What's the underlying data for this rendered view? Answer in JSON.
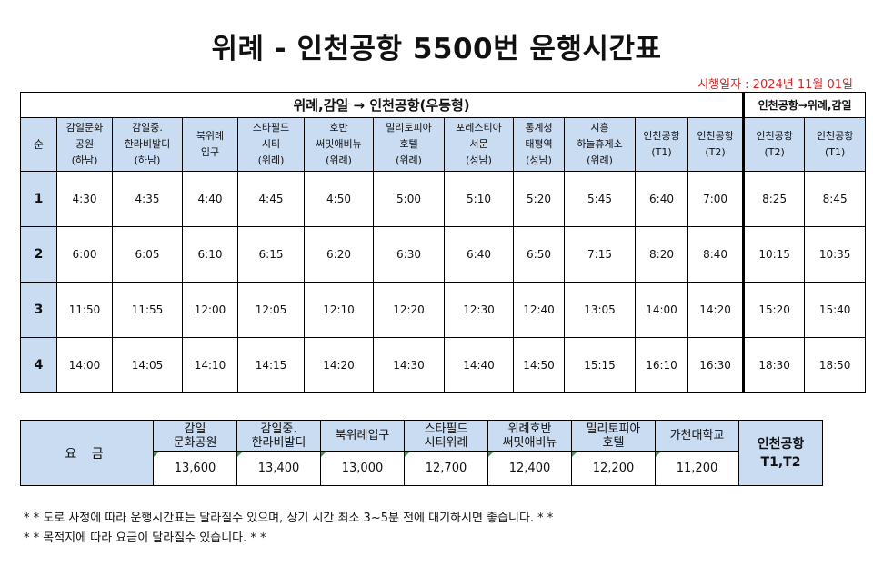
{
  "title": "위례 - 인천공항 5500번 운행시간표",
  "effective_date": "시행일자 : 2024년 11월 01일",
  "schedule": {
    "outbound_label": "위례,감일 → 인천공항(우등형)",
    "inbound_label": "인천공항→위례,감일",
    "seq_label": "순",
    "stops": [
      [
        "감일문화",
        "공원",
        "(하남)"
      ],
      [
        "감일중.",
        "한라비발디",
        "(하남)"
      ],
      [
        "북위례",
        "입구"
      ],
      [
        "스타필드",
        "시티",
        "(위례)"
      ],
      [
        "호반",
        "써밋애비뉴",
        "(위례)"
      ],
      [
        "밀리토피아",
        "호텔",
        "(위례)"
      ],
      [
        "포레스티아",
        "서문",
        "(성남)"
      ],
      [
        "통계청",
        "태평역",
        "(성남)"
      ],
      [
        "시흥",
        "하늘휴게소",
        "(위례)"
      ],
      [
        "인천공항",
        "(T1)"
      ],
      [
        "인천공항",
        "(T2)"
      ],
      [
        "인천공항",
        "(T2)"
      ],
      [
        "인천공항",
        "(T1)"
      ]
    ],
    "rows": [
      {
        "num": "1",
        "times": [
          "4:30",
          "4:35",
          "4:40",
          "4:45",
          "4:50",
          "5:00",
          "5:10",
          "5:20",
          "5:45",
          "6:40",
          "7:00",
          "8:25",
          "8:45"
        ]
      },
      {
        "num": "2",
        "times": [
          "6:00",
          "6:05",
          "6:10",
          "6:15",
          "6:20",
          "6:30",
          "6:40",
          "6:50",
          "7:15",
          "8:20",
          "8:40",
          "10:15",
          "10:35"
        ]
      },
      {
        "num": "3",
        "times": [
          "11:50",
          "11:55",
          "12:00",
          "12:05",
          "12:10",
          "12:20",
          "12:30",
          "12:40",
          "13:05",
          "14:00",
          "14:20",
          "15:20",
          "15:40"
        ]
      },
      {
        "num": "4",
        "times": [
          "14:00",
          "14:05",
          "14:10",
          "14:15",
          "14:20",
          "14:30",
          "14:40",
          "14:50",
          "15:15",
          "16:10",
          "16:30",
          "18:30",
          "18:50"
        ]
      }
    ]
  },
  "fares": {
    "label": "요 금",
    "stops": [
      {
        "name": [
          "감일",
          "문화공원"
        ],
        "price": "13,600"
      },
      {
        "name": [
          "감일중.",
          "한라비발디"
        ],
        "price": "13,400"
      },
      {
        "name": [
          "북위례입구"
        ],
        "price": "13,000"
      },
      {
        "name": [
          "스타필드",
          "시티위례"
        ],
        "price": "12,700"
      },
      {
        "name": [
          "위례호반",
          "써밋애비뉴"
        ],
        "price": "12,400"
      },
      {
        "name": [
          "밀리토피아",
          "호텔"
        ],
        "price": "12,200"
      },
      {
        "name": [
          "가천대학교"
        ],
        "price": "11,200"
      }
    ],
    "destination": [
      "인천공항",
      "T1,T2"
    ]
  },
  "notes": [
    "* * 도로 사정에 따라 운행시간표는 달라질수 있으며, 상기 시간 최소 3~5분 전에 대기하시면 좋습니다. * *",
    "* * 목적지에 따라 요금이 달라질수 있습니다. * *"
  ]
}
